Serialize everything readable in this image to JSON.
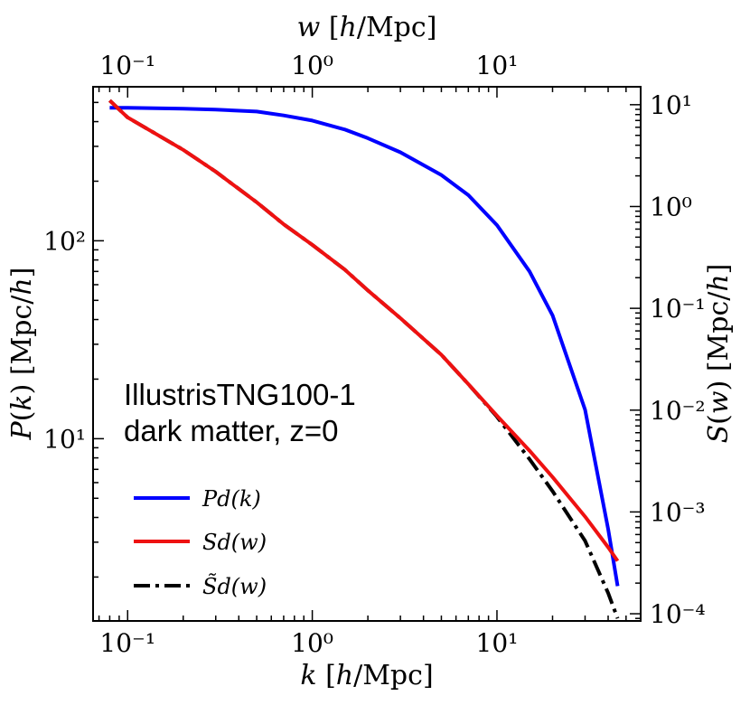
{
  "chart_data": {
    "type": "line",
    "annotation": [
      "IllustrisTNG100-1",
      "dark matter, z=0"
    ],
    "axes": {
      "bottom": {
        "label": "k [h/Mpc]",
        "scale": "log",
        "range": [
          0.065,
          60
        ],
        "major_ticks": [
          0.1,
          1,
          10
        ],
        "tick_labels": [
          "10⁻¹",
          "10⁰",
          "10¹"
        ]
      },
      "top": {
        "label": "w [h/Mpc]",
        "scale": "log",
        "range": [
          0.065,
          60
        ],
        "major_ticks": [
          0.1,
          1,
          10
        ],
        "tick_labels": [
          "10⁻¹",
          "10⁰",
          "10¹"
        ]
      },
      "left": {
        "label": "P(k) [Mpc/h]",
        "scale": "log",
        "range": [
          1.2,
          600
        ],
        "major_ticks": [
          10,
          100
        ],
        "tick_labels": [
          "10¹",
          "10²"
        ]
      },
      "right": {
        "label": "S(w) [Mpc/h]",
        "scale": "log",
        "range": [
          8.5e-05,
          15
        ],
        "major_ticks": [
          0.0001,
          0.001,
          0.01,
          0.1,
          1,
          10
        ],
        "tick_labels": [
          "10⁻⁴",
          "10⁻³",
          "10⁻²",
          "10⁻¹",
          "10⁰",
          "10¹"
        ]
      }
    },
    "legend": {
      "placement": "lower-left"
    },
    "series": [
      {
        "name": "Pd(k)",
        "axis": "left",
        "color": "#0000ff",
        "style": "solid",
        "x": [
          0.08,
          0.1,
          0.2,
          0.3,
          0.5,
          0.7,
          1.0,
          1.5,
          2.0,
          3.0,
          5.0,
          7.0,
          10,
          15,
          20,
          30,
          40,
          45
        ],
        "y": [
          470,
          470,
          465,
          460,
          450,
          430,
          405,
          365,
          330,
          280,
          215,
          170,
          120,
          70,
          42,
          14,
          3.5,
          1.8
        ]
      },
      {
        "name": "Sd(w)",
        "axis": "right",
        "color": "#ee1111",
        "style": "solid",
        "x": [
          0.08,
          0.1,
          0.2,
          0.3,
          0.5,
          0.7,
          1.0,
          1.5,
          2.0,
          3.0,
          5.0,
          7.0,
          10,
          15,
          20,
          30,
          40,
          45
        ],
        "y": [
          11,
          7.5,
          3.6,
          2.2,
          1.1,
          0.67,
          0.42,
          0.24,
          0.15,
          0.08,
          0.035,
          0.018,
          0.0088,
          0.004,
          0.0022,
          0.0009,
          0.00045,
          0.00033
        ]
      },
      {
        "name": "S̃d(w)",
        "axis": "right",
        "color": "#000000",
        "style": "dashdot",
        "x": [
          0.08,
          0.1,
          0.2,
          0.3,
          0.5,
          0.7,
          1.0,
          1.5,
          2.0,
          3.0,
          5.0,
          7.0,
          10,
          15,
          20,
          30,
          40,
          45
        ],
        "y": [
          11,
          7.5,
          3.6,
          2.2,
          1.1,
          0.67,
          0.42,
          0.24,
          0.15,
          0.08,
          0.035,
          0.018,
          0.0086,
          0.0033,
          0.0016,
          0.00052,
          0.00016,
          9e-05
        ]
      }
    ]
  }
}
